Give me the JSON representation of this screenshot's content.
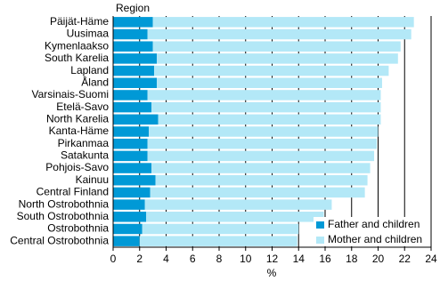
{
  "chart_data": {
    "type": "stacked-bar-horizontal",
    "y_axis_title": "Region",
    "x_axis_title": "%",
    "categories": [
      "Päijät-Häme",
      "Uusimaa",
      "Kymenlaakso",
      "South Karelia",
      "Lapland",
      "Åland",
      "Varsinais-Suomi",
      "Etelä-Savo",
      "North Karelia",
      "Kanta-Häme",
      "Pirkanmaa",
      "Satakunta",
      "Pohjois-Savo",
      "Kainuu",
      "Central Finland",
      "North Ostrobothnia",
      "South Ostrobothnia",
      "Ostrobothnia",
      "Central Ostrobothnia"
    ],
    "series": [
      {
        "name": "Father and children",
        "color": "#0099d6",
        "values": [
          3.0,
          2.6,
          3.0,
          3.3,
          3.1,
          3.3,
          2.6,
          2.9,
          3.4,
          2.7,
          2.6,
          2.6,
          2.9,
          3.2,
          2.8,
          2.4,
          2.5,
          2.2,
          2.0
        ]
      },
      {
        "name": "Mother and children",
        "color": "#b3e8f7",
        "values": [
          19.7,
          19.9,
          18.7,
          18.2,
          17.7,
          17.0,
          17.6,
          17.3,
          16.8,
          17.3,
          17.3,
          17.1,
          16.5,
          16.0,
          16.2,
          14.1,
          13.4,
          11.8,
          11.9
        ]
      }
    ],
    "xlim": [
      0,
      24
    ],
    "xticks": [
      0,
      2,
      4,
      6,
      8,
      10,
      12,
      14,
      16,
      18,
      20,
      22,
      24
    ],
    "grid": true,
    "legend": "bottom-right"
  }
}
